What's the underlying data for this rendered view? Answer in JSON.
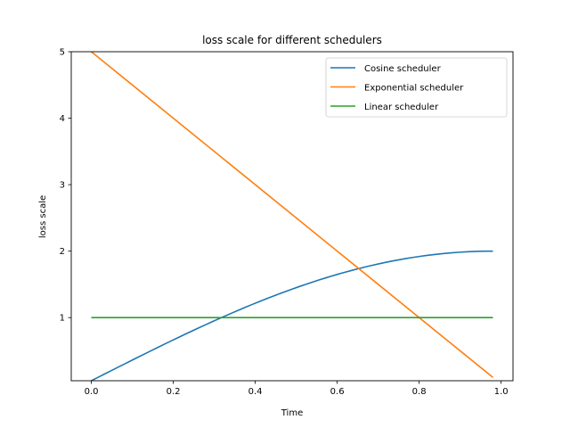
{
  "chart_data": {
    "type": "line",
    "title": "loss scale for different schedulers",
    "xlabel": "Time",
    "ylabel": "loss scale",
    "xlim": [
      -0.049,
      1.029
    ],
    "ylim": [
      0.05,
      5.0
    ],
    "xticks": [
      0.0,
      0.2,
      0.4,
      0.6,
      0.8,
      1.0
    ],
    "xtick_labels": [
      "0.0",
      "0.2",
      "0.4",
      "0.6",
      "0.8",
      "1.0"
    ],
    "yticks": [
      1,
      2,
      3,
      4,
      5
    ],
    "ytick_labels": [
      "1",
      "2",
      "3",
      "4",
      "5"
    ],
    "grid": false,
    "legend_position": "top-right",
    "x_range": [
      0.0,
      0.98
    ],
    "series": [
      {
        "name": "Cosine scheduler",
        "color": "#1f77b4",
        "x": [
          0.0,
          0.1,
          0.2,
          0.3,
          0.4,
          0.5,
          0.6,
          0.7,
          0.8,
          0.9,
          0.98
        ],
        "y": [
          0.05,
          0.44,
          0.83,
          1.13,
          1.38,
          1.57,
          1.73,
          1.85,
          1.93,
          1.98,
          2.0
        ]
      },
      {
        "name": "Exponential scheduler",
        "color": "#ff7f0e",
        "x": [
          0.0,
          0.98
        ],
        "y": [
          5.0,
          0.1
        ]
      },
      {
        "name": "Linear scheduler",
        "color": "#2ca02c",
        "x": [
          0.0,
          0.98
        ],
        "y": [
          1.0,
          1.0
        ]
      }
    ]
  }
}
